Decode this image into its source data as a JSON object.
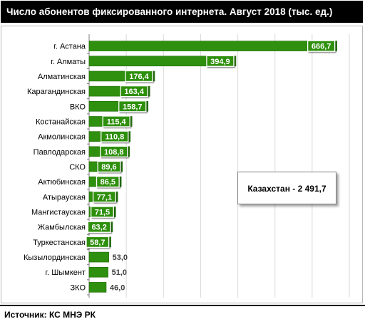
{
  "title": "Число абонентов фиксированного интернета. Август  2018 (тыс. ед.)",
  "annotation": "Казахстан - 2 491,7",
  "source": "Источник:  КС  МНЭ РК",
  "colors": {
    "bar": "#2f8f0f",
    "bar_dark": "#1e6a08",
    "grid": "#d9d9d9",
    "label_bg": "#ffffff"
  },
  "chart_data": {
    "type": "bar",
    "orientation": "horizontal",
    "title": "Число абонентов фиксированного интернета. Август  2018 (тыс. ед.)",
    "xlabel": "",
    "ylabel": "",
    "xlim": [
      0,
      700
    ],
    "grid": true,
    "categories": [
      "г. Астана",
      "г. Алматы",
      "Алматинская",
      "Карагандинская",
      "ВКО",
      "Костанайская",
      "Акмолинская",
      "Павлодарская",
      "СКО",
      "Актюбинская",
      "Атырауская",
      "Мангистауская",
      "Жамбылская",
      "Туркестанская",
      "Кызылординская",
      "г. Шымкент",
      "ЗКО"
    ],
    "values": [
      666.7,
      394.9,
      176.4,
      163.4,
      158.7,
      115.4,
      110.8,
      108.8,
      89.6,
      86.5,
      77.1,
      71.5,
      63.2,
      58.7,
      53.0,
      51.0,
      46.0
    ],
    "value_labels": [
      "666,7",
      "394,9",
      "176,4",
      "163,4",
      "158,7",
      "115,4",
      "110,8",
      "108,8",
      "89,6",
      "86,5",
      "77,1",
      "71,5",
      "63,2",
      "58,7",
      "53,0",
      "51,0",
      "46,0"
    ],
    "label_outside_from_index": 14
  }
}
